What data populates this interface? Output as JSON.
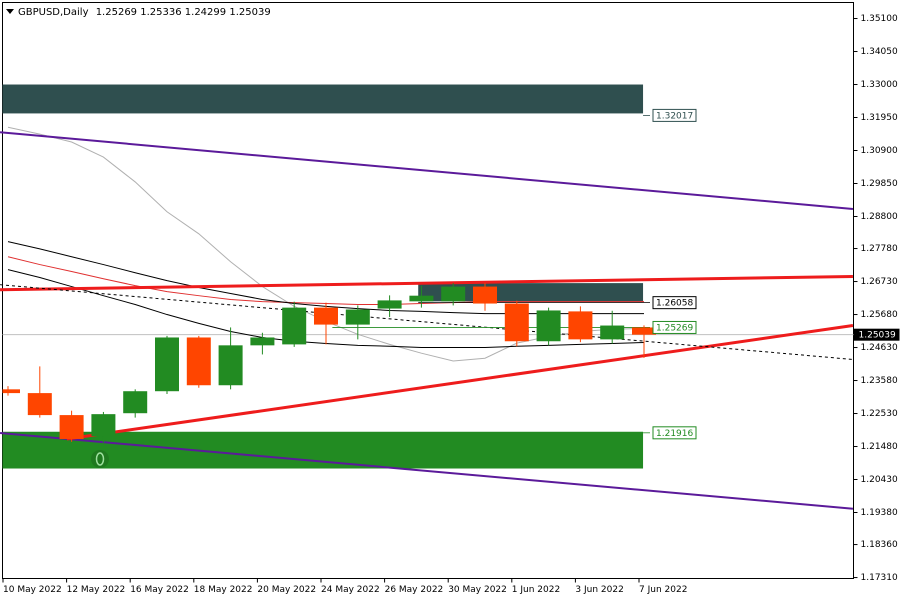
{
  "chart_data": {
    "type": "candlestick",
    "title": "GBPUSD,Daily",
    "categories": [
      "10 May 2022",
      null,
      "12 May 2022",
      null,
      "16 May 2022",
      null,
      "18 May 2022",
      null,
      "20 May 2022",
      null,
      "24 May 2022",
      null,
      "26 May 2022",
      null,
      "30 May 2022",
      null,
      "1 Jun 2022",
      null,
      "3 Jun 2022",
      null,
      "7 Jun 2022"
    ],
    "ohlc": [
      {
        "open": 1.233,
        "high": 1.234,
        "low": 1.231,
        "close": 1.2318
      },
      {
        "open": 1.2318,
        "high": 1.2403,
        "low": 1.224,
        "close": 1.2248
      },
      {
        "open": 1.2248,
        "high": 1.2262,
        "low": 1.2163,
        "close": 1.2172
      },
      {
        "open": 1.2181,
        "high": 1.2258,
        "low": 1.216,
        "close": 1.2251
      },
      {
        "open": 1.2254,
        "high": 1.233,
        "low": 1.224,
        "close": 1.2324
      },
      {
        "open": 1.2324,
        "high": 1.25,
        "low": 1.2315,
        "close": 1.2495
      },
      {
        "open": 1.2495,
        "high": 1.25,
        "low": 1.2335,
        "close": 1.2343
      },
      {
        "open": 1.2343,
        "high": 1.2527,
        "low": 1.233,
        "close": 1.247
      },
      {
        "open": 1.247,
        "high": 1.251,
        "low": 1.2441,
        "close": 1.2495
      },
      {
        "open": 1.2473,
        "high": 1.2609,
        "low": 1.2465,
        "close": 1.259
      },
      {
        "open": 1.259,
        "high": 1.2606,
        "low": 1.2473,
        "close": 1.2536
      },
      {
        "open": 1.2536,
        "high": 1.2597,
        "low": 1.2489,
        "close": 1.2584
      },
      {
        "open": 1.2587,
        "high": 1.2629,
        "low": 1.256,
        "close": 1.2613
      },
      {
        "open": 1.261,
        "high": 1.266,
        "low": 1.259,
        "close": 1.2628
      },
      {
        "open": 1.261,
        "high": 1.2668,
        "low": 1.2597,
        "close": 1.2657
      },
      {
        "open": 1.2657,
        "high": 1.2668,
        "low": 1.258,
        "close": 1.2603
      },
      {
        "open": 1.2603,
        "high": 1.2612,
        "low": 1.2467,
        "close": 1.2483
      },
      {
        "open": 1.2483,
        "high": 1.259,
        "low": 1.247,
        "close": 1.2581
      },
      {
        "open": 1.2578,
        "high": 1.2594,
        "low": 1.248,
        "close": 1.2489
      },
      {
        "open": 1.2489,
        "high": 1.258,
        "low": 1.2475,
        "close": 1.2533
      },
      {
        "open": 1.25269,
        "high": 1.25336,
        "low": 1.24299,
        "close": 1.25039
      }
    ],
    "up_color": "#228b22",
    "down_color": "#ff4500",
    "series": [
      {
        "color": "#b0b0b0",
        "values": [
          1.3164,
          1.3142,
          1.3117,
          1.3069,
          1.299,
          1.2895,
          1.2825,
          1.2736,
          1.2657,
          1.2594,
          1.2546,
          1.2505,
          1.2473,
          1.2445,
          1.242,
          1.2429,
          1.2477,
          1.2498,
          1.2514,
          1.2521,
          1.2524
        ]
      },
      {
        "color": "#e03030",
        "values": [
          1.2752,
          1.2727,
          1.2705,
          1.2682,
          1.266,
          1.2641,
          1.2628,
          1.2616,
          1.2609,
          1.2606,
          1.2603,
          1.26,
          1.26,
          1.2603,
          1.2606,
          1.2609,
          1.2609,
          1.2609,
          1.2609,
          1.2609,
          1.2609
        ]
      },
      {
        "color": "#000000",
        "values": [
          1.28,
          1.2777,
          1.2752,
          1.2727,
          1.2701,
          1.2676,
          1.2654,
          1.2635,
          1.2616,
          1.2603,
          1.2594,
          1.2587,
          1.2581,
          1.2578,
          1.2574,
          1.2571,
          1.2571,
          1.2571,
          1.2571,
          1.2571,
          1.2571
        ]
      },
      {
        "color": "#000000",
        "values": [
          1.2711,
          1.2686,
          1.2657,
          1.2628,
          1.26,
          1.2568,
          1.254,
          1.2514,
          1.2495,
          1.2483,
          1.2476,
          1.247,
          1.2467,
          1.2463,
          1.2463,
          1.2463,
          1.2467,
          1.247,
          1.2473,
          1.2476,
          1.2479
        ]
      }
    ],
    "zones": [
      {
        "color": "#2f4f4f",
        "from": -0.25,
        "to": 19.97,
        "top": 1.33,
        "bottom": 1.3208
      },
      {
        "color": "#2f4f4f",
        "from": 12.9,
        "to": 19.97,
        "top": 1.2668,
        "bottom": 1.261
      },
      {
        "color": "#228b22",
        "from": -0.25,
        "to": 19.97,
        "top": 1.2195,
        "bottom": 1.2078
      }
    ],
    "trendlines": [
      {
        "color": "#5b1a9a",
        "width": 2,
        "from": [
          -0.25,
          1.3148
        ],
        "to": [
          26.57,
          1.2904
        ]
      },
      {
        "color": "#5b1a9a",
        "width": 2,
        "from": [
          -0.25,
          1.2191
        ],
        "to": [
          26.57,
          1.195
        ]
      },
      {
        "color": "#ee1c1c",
        "width": 3,
        "from": [
          -0.25,
          1.2647
        ],
        "to": [
          26.57,
          1.2689
        ]
      },
      {
        "color": "#ee1c1c",
        "width": 3,
        "from": [
          1.85,
          1.2172
        ],
        "to": [
          26.57,
          1.2533
        ]
      },
      {
        "color": "#000000",
        "width": 1,
        "dash": true,
        "from": [
          -0.25,
          1.2663
        ],
        "to": [
          26.57,
          1.2425
        ]
      }
    ],
    "levels": [
      {
        "value": 1.32017,
        "color": "#2f4f4f",
        "from": 19.97
      },
      {
        "value": 1.26058,
        "color": "#000000",
        "from": 12.9
      },
      {
        "value": 1.25269,
        "color": "#228b22",
        "from": 10.2
      },
      {
        "value": 1.21916,
        "color": "#228b22",
        "from": 19.97
      }
    ],
    "ylim": [
      1.1728,
      1.3561
    ],
    "yticks": [
      {
        "value": 1.351,
        "label": "1.35100"
      },
      {
        "value": 1.3405,
        "label": "1.34050"
      },
      {
        "value": 1.33,
        "label": "1.33000"
      },
      {
        "value": 1.3195,
        "label": "1.31950"
      },
      {
        "value": 1.309,
        "label": "1.30900"
      },
      {
        "value": 1.2985,
        "label": "1.29850"
      },
      {
        "value": 1.288,
        "label": "1.28800"
      },
      {
        "value": 1.2778,
        "label": "1.27780"
      },
      {
        "value": 1.2673,
        "label": "1.26730"
      },
      {
        "value": 1.2568,
        "label": "1.25680"
      },
      {
        "value": 1.2463,
        "label": "1.24630"
      },
      {
        "value": 1.2358,
        "label": "1.23580"
      },
      {
        "value": 1.2253,
        "label": "1.22530"
      },
      {
        "value": 1.2148,
        "label": "1.21480"
      },
      {
        "value": 1.2043,
        "label": "1.20430"
      },
      {
        "value": 1.1938,
        "label": "1.19380"
      },
      {
        "value": 1.1836,
        "label": "1.18360"
      },
      {
        "value": 1.1731,
        "label": "1.17310"
      }
    ]
  }
}
